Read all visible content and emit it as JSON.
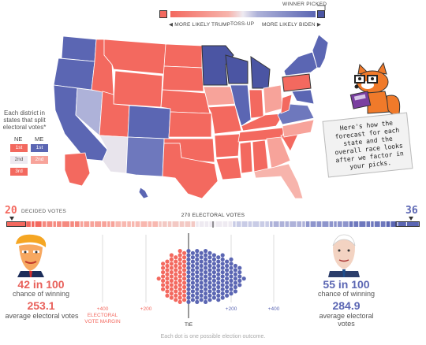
{
  "legend": {
    "winner_picked": "WINNER PICKED",
    "more_likely_trump": "◀ MORE LIKELY TRUMP",
    "toss_up": "TOSS-UP",
    "more_likely_biden": "MORE LIKELY BIDEN ▶",
    "colors": {
      "trump": "#f3695f",
      "biden": "#5b66b3",
      "tossup": "#e8e4ec"
    }
  },
  "districts": {
    "title": "Each district in states that split electoral votes*",
    "ne_label": "NE",
    "me_label": "ME",
    "ne": [
      "1st",
      "2nd",
      "3rd"
    ],
    "me": [
      "1st",
      "2nd"
    ]
  },
  "bubble": {
    "text": "Here's how the forecast for each state and the overall race looks after we factor in your picks."
  },
  "electoral_bar": {
    "trump_votes": "20",
    "decided_label": "DECIDED VOTES",
    "center_label": "270 ELECTORAL VOTES",
    "biden_votes": "36"
  },
  "trump": {
    "chance": "42 in 100",
    "chance_label": "chance of winning",
    "avg_ev": "253.1",
    "avg_label": "average electoral votes"
  },
  "biden": {
    "chance": "55 in 100",
    "chance_label": "chance of winning",
    "avg_ev": "284.9",
    "avg_label": "average electoral votes"
  },
  "margin_axis": {
    "left400": "+400",
    "margin_label": "ELECTORAL VOTE MARGIN",
    "left200": "+200",
    "right200": "+200",
    "right400": "+400",
    "tie": "TIE"
  },
  "footnote": "Each dot is one possible election outcome."
}
